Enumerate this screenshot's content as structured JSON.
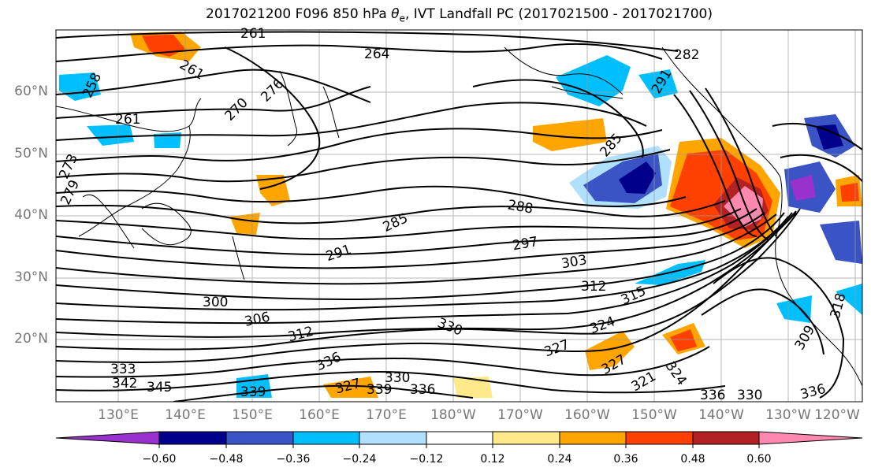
{
  "title_main": "2017021200 F096 850 hPa ",
  "title_sym": "θ",
  "title_sub": "e",
  "title_rest": ", IVT Landfall PC (2017021500 - 2017021700)",
  "lat_ticks": [
    "60°N",
    "50°N",
    "40°N",
    "30°N",
    "20°N"
  ],
  "lon_ticks": [
    "130°E",
    "140°E",
    "150°E",
    "160°E",
    "170°E",
    "180°W",
    "170°W",
    "160°W",
    "150°W",
    "140°W",
    "130°W",
    "120°W"
  ],
  "colorbar": {
    "colors": [
      "#9932cc",
      "#00008b",
      "#3a53c5",
      "#00bfff",
      "#b0e0fb",
      "#ffffff",
      "#ffe98a",
      "#ffa500",
      "#ff4000",
      "#b22222",
      "#ff88b0"
    ],
    "ticks": [
      "−0.60",
      "−0.48",
      "−0.36",
      "−0.24",
      "−0.12",
      "0.12",
      "0.24",
      "0.36",
      "0.48",
      "0.60"
    ]
  },
  "contour_labels": [
    {
      "text": "261"
    },
    {
      "text": "264"
    },
    {
      "text": "261"
    },
    {
      "text": "258"
    },
    {
      "text": "261"
    },
    {
      "text": "270"
    },
    {
      "text": "276"
    },
    {
      "text": "273"
    },
    {
      "text": "279"
    },
    {
      "text": "282"
    },
    {
      "text": "291"
    },
    {
      "text": "285"
    },
    {
      "text": "285"
    },
    {
      "text": "288"
    },
    {
      "text": "291"
    },
    {
      "text": "297"
    },
    {
      "text": "303"
    },
    {
      "text": "312"
    },
    {
      "text": "315"
    },
    {
      "text": "300"
    },
    {
      "text": "306"
    },
    {
      "text": "312"
    },
    {
      "text": "330"
    },
    {
      "text": "336"
    },
    {
      "text": "333"
    },
    {
      "text": "342"
    },
    {
      "text": "345"
    },
    {
      "text": "339"
    },
    {
      "text": "327"
    },
    {
      "text": "330"
    },
    {
      "text": "339"
    },
    {
      "text": "336"
    },
    {
      "text": "324"
    },
    {
      "text": "327"
    },
    {
      "text": "324"
    },
    {
      "text": "321"
    },
    {
      "text": "327"
    },
    {
      "text": "336"
    },
    {
      "text": "330"
    },
    {
      "text": "336"
    },
    {
      "text": "309"
    },
    {
      "text": "318"
    }
  ]
}
